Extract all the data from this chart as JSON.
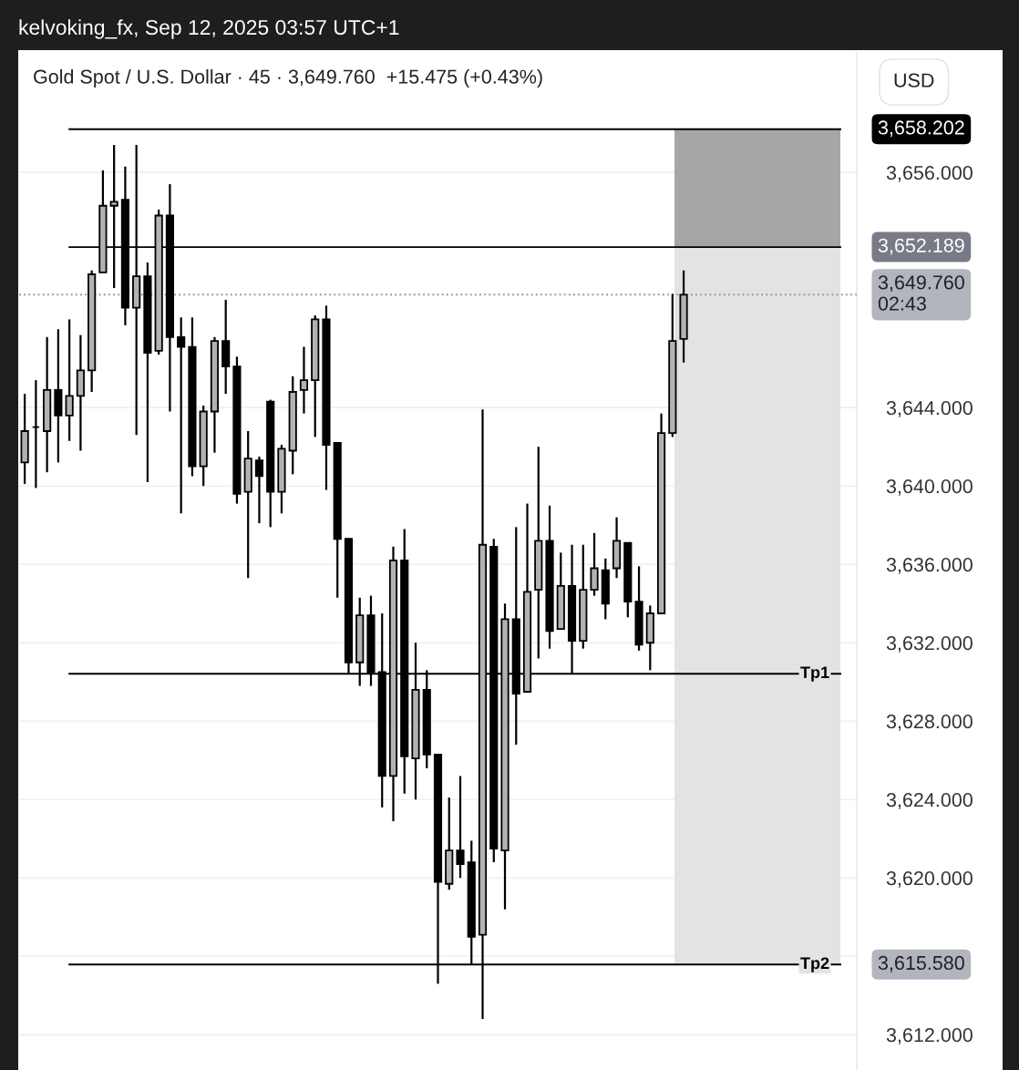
{
  "chart_data": {
    "type": "candlestick",
    "title": "kelvoking_fx, Sep 12, 2025 03:57 UTC+1",
    "subtitle": "Gold Spot / U.S. Dollar · 45 · 3,649.760  +15.475 (+0.43%)",
    "ylabel": "USD",
    "categories": [
      null,
      null,
      null,
      null,
      null,
      null,
      null,
      null,
      null,
      null,
      null,
      null,
      null,
      null,
      null,
      null,
      null,
      null,
      null,
      null,
      null,
      null,
      null,
      null,
      null,
      null,
      null,
      null,
      null,
      null,
      null,
      null,
      null,
      null,
      null,
      null,
      null,
      null,
      null,
      null,
      null,
      null,
      null,
      null,
      null,
      null,
      null,
      null,
      null,
      null,
      null,
      null,
      null,
      null,
      null,
      null,
      null,
      null,
      null,
      null,
      null,
      null,
      null,
      null,
      null,
      null,
      null,
      null,
      null,
      null,
      null,
      null,
      null,
      null,
      null
    ],
    "ohlc": [
      [
        3641.2,
        3644.7,
        3640.1,
        3642.8
      ],
      [
        3643.0,
        3645.4,
        3639.9,
        3643.0
      ],
      [
        3642.8,
        3647.6,
        3640.7,
        3644.9
      ],
      [
        3644.9,
        3648.0,
        3641.2,
        3643.6
      ],
      [
        3643.6,
        3648.5,
        3642.3,
        3644.6
      ],
      [
        3644.6,
        3647.7,
        3641.8,
        3645.9
      ],
      [
        3645.9,
        3651.0,
        3644.8,
        3650.8
      ],
      [
        3650.9,
        3656.1,
        3650.9,
        3654.3
      ],
      [
        3654.3,
        3657.4,
        3650.1,
        3654.5
      ],
      [
        3654.6,
        3656.3,
        3648.2,
        3649.1
      ],
      [
        3649.1,
        3657.4,
        3642.6,
        3650.7
      ],
      [
        3650.7,
        3651.4,
        3640.2,
        3646.8
      ],
      [
        3646.9,
        3654.1,
        3646.7,
        3653.8
      ],
      [
        3653.8,
        3655.4,
        3643.8,
        3647.6
      ],
      [
        3647.6,
        3648.6,
        3638.6,
        3647.1
      ],
      [
        3647.1,
        3648.6,
        3640.5,
        3641.0
      ],
      [
        3641.0,
        3644.1,
        3640.0,
        3643.8
      ],
      [
        3643.8,
        3647.6,
        3641.7,
        3647.4
      ],
      [
        3647.4,
        3649.5,
        3644.7,
        3646.1
      ],
      [
        3646.1,
        3646.6,
        3639.1,
        3639.6
      ],
      [
        3639.7,
        3642.8,
        3635.3,
        3641.4
      ],
      [
        3641.3,
        3641.5,
        3638.1,
        3640.5
      ],
      [
        3644.3,
        3644.4,
        3637.9,
        3639.7
      ],
      [
        3639.7,
        3642.1,
        3638.6,
        3641.9
      ],
      [
        3641.8,
        3645.6,
        3640.6,
        3644.8
      ],
      [
        3644.9,
        3647.1,
        3643.7,
        3645.4
      ],
      [
        3645.4,
        3648.7,
        3642.5,
        3648.5
      ],
      [
        3648.5,
        3649.2,
        3639.8,
        3642.1
      ],
      [
        3642.2,
        3642.2,
        3634.3,
        3637.3
      ],
      [
        3637.3,
        3637.3,
        3630.4,
        3631.0
      ],
      [
        3631.0,
        3634.3,
        3629.8,
        3633.4
      ],
      [
        3633.4,
        3634.4,
        3629.8,
        3630.5
      ],
      [
        3630.5,
        3633.5,
        3623.6,
        3625.2
      ],
      [
        3625.2,
        3636.9,
        3622.9,
        3636.2
      ],
      [
        3636.2,
        3637.8,
        3624.3,
        3626.2
      ],
      [
        3626.1,
        3632.0,
        3624.0,
        3629.6
      ],
      [
        3629.6,
        3630.6,
        3625.6,
        3626.3
      ],
      [
        3626.3,
        3626.3,
        3614.6,
        3619.8
      ],
      [
        3619.7,
        3624.1,
        3619.4,
        3621.4
      ],
      [
        3621.4,
        3625.2,
        3620.0,
        3620.7
      ],
      [
        3620.8,
        3621.9,
        3615.6,
        3617.0
      ],
      [
        3617.1,
        3643.9,
        3612.8,
        3637.0
      ],
      [
        3636.9,
        3637.3,
        3620.8,
        3621.5
      ],
      [
        3621.4,
        3634.0,
        3618.4,
        3633.2
      ],
      [
        3633.2,
        3637.9,
        3626.8,
        3629.4
      ],
      [
        3629.5,
        3639.1,
        3629.5,
        3634.6
      ],
      [
        3634.7,
        3642.0,
        3631.2,
        3637.2
      ],
      [
        3637.2,
        3639.0,
        3631.7,
        3632.6
      ],
      [
        3632.7,
        3636.6,
        3632.7,
        3634.9
      ],
      [
        3634.9,
        3637.0,
        3630.4,
        3632.1
      ],
      [
        3632.1,
        3637.0,
        3631.7,
        3634.7
      ],
      [
        3634.7,
        3637.6,
        3634.4,
        3635.8
      ],
      [
        3635.7,
        3636.3,
        3633.2,
        3634.0
      ],
      [
        3635.8,
        3638.4,
        3635.3,
        3637.2
      ],
      [
        3637.1,
        3637.1,
        3633.3,
        3634.1
      ],
      [
        3634.1,
        3635.9,
        3631.6,
        3631.9
      ],
      [
        3632.0,
        3633.9,
        3630.6,
        3633.5
      ],
      [
        3633.5,
        3643.7,
        3633.5,
        3642.7
      ],
      [
        3642.7,
        3649.8,
        3642.5,
        3647.4
      ],
      [
        3647.5,
        3651.0,
        3646.3,
        3649.76
      ],
      null,
      null,
      null,
      null,
      null,
      null,
      null,
      null,
      null,
      null,
      null,
      null,
      null,
      null,
      null
    ],
    "colors": [
      "#b2b2b2",
      "#000000",
      "#b2b2b2",
      "#000000",
      "#b2b2b2",
      "#b2b2b2",
      "#b2b2b2",
      "#b2b2b2",
      "#b2b2b2",
      "#000000",
      "#b2b2b2",
      "#000000",
      "#b2b2b2",
      "#000000",
      "#000000",
      "#000000",
      "#b2b2b2",
      "#b2b2b2",
      "#000000",
      "#000000",
      "#b2b2b2",
      "#000000",
      "#000000",
      "#b2b2b2",
      "#b2b2b2",
      "#b2b2b2",
      "#b2b2b2",
      "#000000",
      "#000000",
      "#000000",
      "#b2b2b2",
      "#000000",
      "#000000",
      "#b2b2b2",
      "#000000",
      "#b2b2b2",
      "#000000",
      "#000000",
      "#b2b2b2",
      "#000000",
      "#000000",
      "#b2b2b2",
      "#000000",
      "#b2b2b2",
      "#000000",
      "#b2b2b2",
      "#b2b2b2",
      "#000000",
      "#b2b2b2",
      "#000000",
      "#b2b2b2",
      "#b2b2b2",
      "#000000",
      "#b2b2b2",
      "#000000",
      "#000000",
      "#b2b2b2",
      "#b2b2b2",
      "#b2b2b2",
      "#b2b2b2",
      null,
      null,
      null,
      null,
      null,
      null,
      null,
      null,
      null,
      null,
      null,
      null,
      null,
      null,
      null
    ],
    "ylim": [
      3610.2,
      3662.1
    ],
    "yticks": [
      {
        "value": 3612,
        "label": "3,612.000"
      },
      {
        "value": 3616,
        "label": null
      },
      {
        "value": 3620,
        "label": "3,620.000"
      },
      {
        "value": 3624,
        "label": "3,624.000"
      },
      {
        "value": 3628,
        "label": "3,628.000"
      },
      {
        "value": 3632,
        "label": "3,632.000"
      },
      {
        "value": 3636,
        "label": "3,636.000"
      },
      {
        "value": 3640,
        "label": "3,640.000"
      },
      {
        "value": 3644,
        "label": "3,644.000"
      },
      {
        "value": 3656,
        "label": "3,656.000"
      }
    ],
    "grid": "y",
    "bands": [
      {
        "axis": "y",
        "from": 3652.189,
        "to": 3658.202,
        "color": "#a6a6a6"
      },
      {
        "axis": "y",
        "from": 3615.58,
        "to": 3652.189,
        "color": "#e3e3e3"
      }
    ],
    "ref_lines": [
      {
        "axis": "y",
        "value": 3658.202,
        "label": "3,658.202",
        "color": "#000000"
      },
      {
        "axis": "y",
        "value": 3652.189,
        "label": "3,652.189",
        "color": "#000000"
      },
      {
        "axis": "y",
        "value": 3649.76,
        "label": "3,649.760\n02:43",
        "color": "#9a9a9a",
        "line_style": "dotted"
      },
      {
        "axis": "y",
        "value": 3630.42,
        "label": null,
        "color": "#000000"
      },
      {
        "axis": "y",
        "value": 3615.58,
        "label": "3,615.580",
        "color": "#000000"
      }
    ],
    "annotations": [
      {
        "text": "Tp1",
        "y": 3630.42
      },
      {
        "text": "Tp2",
        "y": 3615.58
      }
    ]
  }
}
